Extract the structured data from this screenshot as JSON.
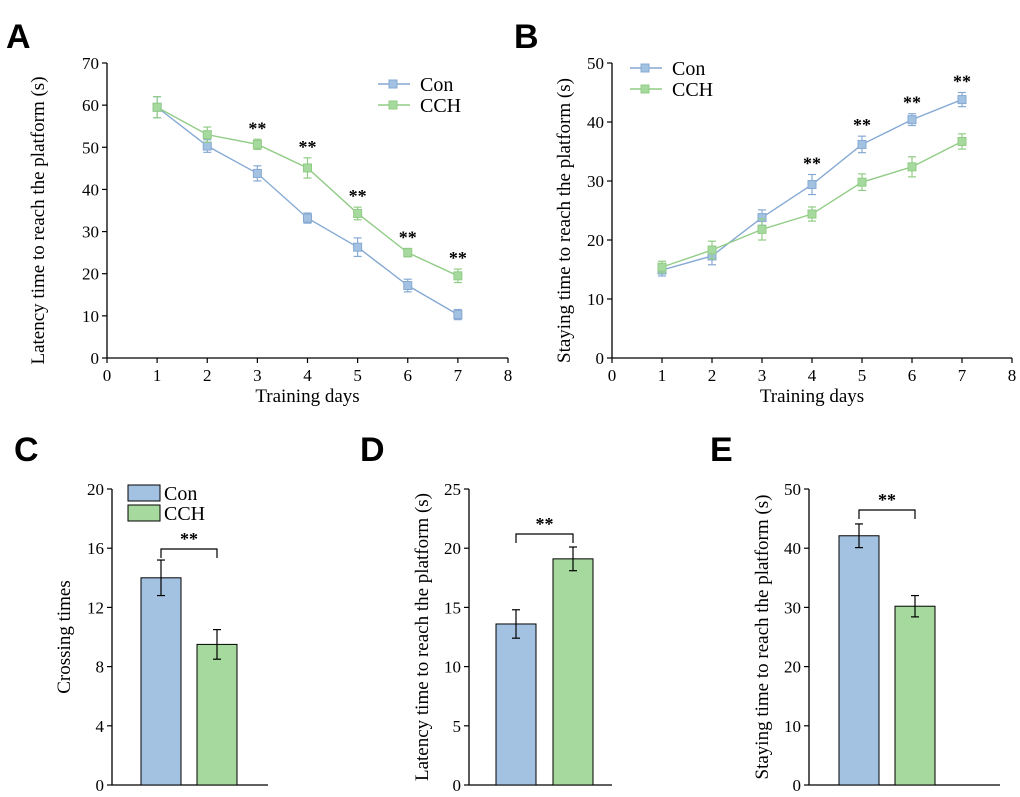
{
  "colors": {
    "con": "#a3c2e2",
    "cch": "#a6d99d",
    "con_line": "#86a9d3",
    "cch_line": "#91cc86",
    "axis": "#000000"
  },
  "chart_data": [
    {
      "panel": "A",
      "type": "line",
      "xlabel": "Training days",
      "ylabel": "Latency time to reach the platform (s)",
      "xlim": [
        0,
        8
      ],
      "ylim": [
        0,
        70
      ],
      "xticks": [
        "0",
        "1",
        "2",
        "3",
        "4",
        "5",
        "6",
        "7",
        "8"
      ],
      "yticks": [
        "0",
        "10",
        "20",
        "30",
        "40",
        "50",
        "60",
        "70"
      ],
      "x": [
        1,
        2,
        3,
        4,
        5,
        6,
        7
      ],
      "legend": [
        "Con",
        "CCH"
      ],
      "series": [
        {
          "name": "Con",
          "values": [
            59.5,
            50.3,
            43.8,
            33.2,
            26.3,
            17.2,
            10.3
          ],
          "errors": [
            2.5,
            1.5,
            1.8,
            1.2,
            2.2,
            1.5,
            1.2
          ]
        },
        {
          "name": "CCH",
          "values": [
            59.5,
            53.0,
            50.7,
            45.1,
            34.3,
            25.0,
            19.5
          ],
          "errors": [
            2.5,
            1.8,
            1.2,
            2.4,
            1.5,
            1.0,
            1.6
          ]
        }
      ],
      "annotations": [
        {
          "x": 3,
          "text": "**"
        },
        {
          "x": 4,
          "text": "**"
        },
        {
          "x": 5,
          "text": "**"
        },
        {
          "x": 6,
          "text": "**"
        },
        {
          "x": 7,
          "text": "**"
        }
      ]
    },
    {
      "panel": "B",
      "type": "line",
      "xlabel": "Training days",
      "ylabel": "Staying time to reach the platform (s)",
      "xlim": [
        0,
        8
      ],
      "ylim": [
        0,
        50
      ],
      "xticks": [
        "0",
        "1",
        "2",
        "3",
        "4",
        "5",
        "6",
        "7",
        "8"
      ],
      "yticks": [
        "0",
        "10",
        "20",
        "30",
        "40",
        "50"
      ],
      "x": [
        1,
        2,
        3,
        4,
        5,
        6,
        7
      ],
      "legend": [
        "Con",
        "CCH"
      ],
      "series": [
        {
          "name": "Con",
          "values": [
            14.9,
            17.3,
            23.8,
            29.4,
            36.2,
            40.4,
            43.8
          ],
          "errors": [
            1.0,
            1.5,
            1.3,
            1.7,
            1.4,
            1.0,
            1.2
          ]
        },
        {
          "name": "CCH",
          "values": [
            15.4,
            18.3,
            21.8,
            24.4,
            29.8,
            32.4,
            36.7
          ],
          "errors": [
            1.0,
            1.5,
            1.8,
            1.2,
            1.4,
            1.7,
            1.3
          ]
        }
      ],
      "annotations": [
        {
          "x": 4,
          "text": "**"
        },
        {
          "x": 5,
          "text": "**"
        },
        {
          "x": 6,
          "text": "**"
        },
        {
          "x": 7,
          "text": "**"
        }
      ]
    },
    {
      "panel": "C",
      "type": "bar",
      "xlabel": "",
      "ylabel": "Crossing times",
      "ylim": [
        0,
        20
      ],
      "yticks": [
        "0",
        "4",
        "8",
        "12",
        "16",
        "20"
      ],
      "categories": [
        "Con",
        "CCH"
      ],
      "values": [
        14.0,
        9.5
      ],
      "errors": [
        1.2,
        1.0
      ],
      "legend": [
        "Con",
        "CCH"
      ],
      "significance": "**"
    },
    {
      "panel": "D",
      "type": "bar",
      "xlabel": "",
      "ylabel": "Latency time to reach the platform (s)",
      "ylim": [
        0,
        25
      ],
      "yticks": [
        "0",
        "5",
        "10",
        "15",
        "20",
        "25"
      ],
      "categories": [
        "Con",
        "CCH"
      ],
      "values": [
        13.6,
        19.1
      ],
      "errors": [
        1.2,
        1.0
      ],
      "significance": "**"
    },
    {
      "panel": "E",
      "type": "bar",
      "xlabel": "",
      "ylabel": "Staying time to reach the platform (s)",
      "ylim": [
        0,
        50
      ],
      "yticks": [
        "0",
        "10",
        "20",
        "30",
        "40",
        "50"
      ],
      "categories": [
        "Con",
        "CCH"
      ],
      "values": [
        42.1,
        30.2
      ],
      "errors": [
        2.0,
        1.8
      ],
      "significance": "**"
    }
  ]
}
